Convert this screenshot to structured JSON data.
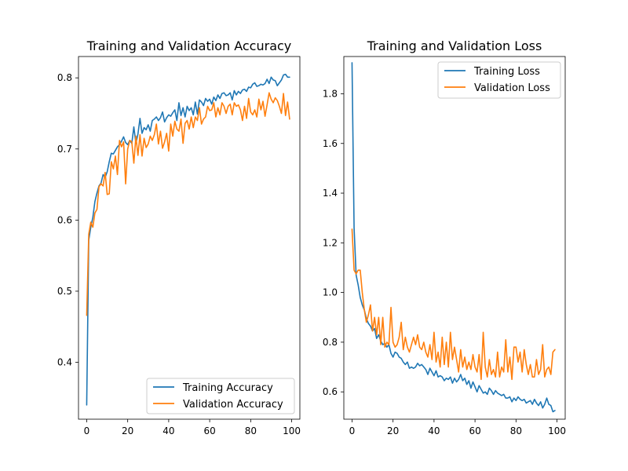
{
  "chart_data": [
    {
      "type": "line",
      "title": "Training and Validation Accuracy",
      "xlabel": "",
      "ylabel": "",
      "xlim": [
        -4,
        104
      ],
      "ylim": [
        0.32,
        0.83
      ],
      "xticks": [
        0,
        20,
        40,
        60,
        80,
        100
      ],
      "yticks": [
        0.4,
        0.5,
        0.6,
        0.7,
        0.8
      ],
      "legend_position": "lower-right",
      "grid": false,
      "series": [
        {
          "name": "Training Accuracy",
          "color": "#1f77b4",
          "x": [
            0,
            1,
            2,
            3,
            4,
            5,
            6,
            7,
            8,
            9,
            10,
            11,
            12,
            13,
            14,
            15,
            16,
            17,
            18,
            19,
            20,
            21,
            22,
            23,
            24,
            25,
            26,
            27,
            28,
            29,
            30,
            31,
            32,
            33,
            34,
            35,
            36,
            37,
            38,
            39,
            40,
            41,
            42,
            43,
            44,
            45,
            46,
            47,
            48,
            49,
            50,
            51,
            52,
            53,
            54,
            55,
            56,
            57,
            58,
            59,
            60,
            61,
            62,
            63,
            64,
            65,
            66,
            67,
            68,
            69,
            70,
            71,
            72,
            73,
            74,
            75,
            76,
            77,
            78,
            79,
            80,
            81,
            82,
            83,
            84,
            85,
            86,
            87,
            88,
            89,
            90,
            91,
            92,
            93,
            94,
            95,
            96,
            97,
            98,
            99
          ],
          "values": [
            0.34,
            0.572,
            0.59,
            0.604,
            0.626,
            0.638,
            0.648,
            0.652,
            0.664,
            0.66,
            0.668,
            0.682,
            0.694,
            0.693,
            0.698,
            0.703,
            0.706,
            0.711,
            0.717,
            0.709,
            0.706,
            0.712,
            0.708,
            0.731,
            0.708,
            0.721,
            0.743,
            0.722,
            0.73,
            0.727,
            0.734,
            0.725,
            0.74,
            0.742,
            0.745,
            0.74,
            0.744,
            0.752,
            0.738,
            0.744,
            0.748,
            0.746,
            0.751,
            0.755,
            0.74,
            0.765,
            0.747,
            0.758,
            0.745,
            0.76,
            0.754,
            0.758,
            0.748,
            0.766,
            0.749,
            0.769,
            0.766,
            0.761,
            0.771,
            0.767,
            0.77,
            0.763,
            0.773,
            0.768,
            0.776,
            0.771,
            0.778,
            0.779,
            0.775,
            0.776,
            0.779,
            0.769,
            0.782,
            0.776,
            0.781,
            0.778,
            0.783,
            0.784,
            0.781,
            0.787,
            0.786,
            0.791,
            0.793,
            0.788,
            0.789,
            0.791,
            0.79,
            0.792,
            0.798,
            0.792,
            0.801,
            0.797,
            0.796,
            0.789,
            0.793,
            0.797,
            0.804,
            0.805,
            0.801,
            0.801
          ]
        },
        {
          "name": "Validation Accuracy",
          "color": "#ff7f0e",
          "x": [
            0,
            1,
            2,
            3,
            4,
            5,
            6,
            7,
            8,
            9,
            10,
            11,
            12,
            13,
            14,
            15,
            16,
            17,
            18,
            19,
            20,
            21,
            22,
            23,
            24,
            25,
            26,
            27,
            28,
            29,
            30,
            31,
            32,
            33,
            34,
            35,
            36,
            37,
            38,
            39,
            40,
            41,
            42,
            43,
            44,
            45,
            46,
            47,
            48,
            49,
            50,
            51,
            52,
            53,
            54,
            55,
            56,
            57,
            58,
            59,
            60,
            61,
            62,
            63,
            64,
            65,
            66,
            67,
            68,
            69,
            70,
            71,
            72,
            73,
            74,
            75,
            76,
            77,
            78,
            79,
            80,
            81,
            82,
            83,
            84,
            85,
            86,
            87,
            88,
            89,
            90,
            91,
            92,
            93,
            94,
            95,
            96,
            97,
            98,
            99
          ],
          "values": [
            0.466,
            0.58,
            0.597,
            0.59,
            0.61,
            0.615,
            0.647,
            0.651,
            0.648,
            0.667,
            0.636,
            0.637,
            0.682,
            0.672,
            0.69,
            0.664,
            0.712,
            0.703,
            0.71,
            0.651,
            0.7,
            0.712,
            0.71,
            0.68,
            0.718,
            0.691,
            0.72,
            0.69,
            0.715,
            0.702,
            0.707,
            0.718,
            0.712,
            0.72,
            0.735,
            0.707,
            0.725,
            0.701,
            0.71,
            0.722,
            0.697,
            0.735,
            0.718,
            0.739,
            0.728,
            0.725,
            0.742,
            0.708,
            0.736,
            0.74,
            0.728,
            0.745,
            0.73,
            0.745,
            0.74,
            0.758,
            0.735,
            0.742,
            0.745,
            0.76,
            0.754,
            0.755,
            0.765,
            0.745,
            0.758,
            0.748,
            0.765,
            0.76,
            0.75,
            0.76,
            0.763,
            0.748,
            0.765,
            0.76,
            0.762,
            0.755,
            0.74,
            0.76,
            0.743,
            0.771,
            0.752,
            0.748,
            0.755,
            0.745,
            0.77,
            0.755,
            0.767,
            0.746,
            0.762,
            0.779,
            0.77,
            0.765,
            0.772,
            0.768,
            0.76,
            0.75,
            0.778,
            0.747,
            0.766,
            0.742
          ]
        }
      ]
    },
    {
      "type": "line",
      "title": "Training and Validation Loss",
      "xlabel": "",
      "ylabel": "",
      "xlim": [
        -4,
        104
      ],
      "ylim": [
        0.49,
        1.95
      ],
      "xticks": [
        0,
        20,
        40,
        60,
        80,
        100
      ],
      "yticks": [
        0.6,
        0.8,
        1.0,
        1.2,
        1.4,
        1.6,
        1.8
      ],
      "legend_position": "upper-right",
      "grid": false,
      "series": [
        {
          "name": "Training Loss",
          "color": "#1f77b4",
          "x": [
            0,
            1,
            2,
            3,
            4,
            5,
            6,
            7,
            8,
            9,
            10,
            11,
            12,
            13,
            14,
            15,
            16,
            17,
            18,
            19,
            20,
            21,
            22,
            23,
            24,
            25,
            26,
            27,
            28,
            29,
            30,
            31,
            32,
            33,
            34,
            35,
            36,
            37,
            38,
            39,
            40,
            41,
            42,
            43,
            44,
            45,
            46,
            47,
            48,
            49,
            50,
            51,
            52,
            53,
            54,
            55,
            56,
            57,
            58,
            59,
            60,
            61,
            62,
            63,
            64,
            65,
            66,
            67,
            68,
            69,
            70,
            71,
            72,
            73,
            74,
            75,
            76,
            77,
            78,
            79,
            80,
            81,
            82,
            83,
            84,
            85,
            86,
            87,
            88,
            89,
            90,
            91,
            92,
            93,
            94,
            95,
            96,
            97,
            98,
            99
          ],
          "values": [
            1.925,
            1.26,
            1.07,
            1.03,
            0.98,
            0.95,
            0.93,
            0.895,
            0.875,
            0.865,
            0.845,
            0.855,
            0.815,
            0.83,
            0.805,
            0.79,
            0.795,
            0.78,
            0.79,
            0.755,
            0.74,
            0.76,
            0.755,
            0.74,
            0.735,
            0.72,
            0.71,
            0.72,
            0.695,
            0.7,
            0.695,
            0.7,
            0.715,
            0.705,
            0.71,
            0.7,
            0.69,
            0.67,
            0.695,
            0.68,
            0.665,
            0.685,
            0.66,
            0.665,
            0.66,
            0.645,
            0.655,
            0.65,
            0.66,
            0.635,
            0.655,
            0.64,
            0.65,
            0.67,
            0.645,
            0.655,
            0.63,
            0.645,
            0.615,
            0.64,
            0.62,
            0.6,
            0.625,
            0.61,
            0.595,
            0.6,
            0.59,
            0.615,
            0.605,
            0.59,
            0.605,
            0.595,
            0.59,
            0.585,
            0.59,
            0.575,
            0.575,
            0.58,
            0.56,
            0.575,
            0.565,
            0.58,
            0.57,
            0.565,
            0.57,
            0.555,
            0.56,
            0.565,
            0.55,
            0.57,
            0.555,
            0.545,
            0.56,
            0.535,
            0.55,
            0.575,
            0.55,
            0.545,
            0.52,
            0.525
          ]
        },
        {
          "name": "Validation Loss",
          "color": "#ff7f0e",
          "x": [
            0,
            1,
            2,
            3,
            4,
            5,
            6,
            7,
            8,
            9,
            10,
            11,
            12,
            13,
            14,
            15,
            16,
            17,
            18,
            19,
            20,
            21,
            22,
            23,
            24,
            25,
            26,
            27,
            28,
            29,
            30,
            31,
            32,
            33,
            34,
            35,
            36,
            37,
            38,
            39,
            40,
            41,
            42,
            43,
            44,
            45,
            46,
            47,
            48,
            49,
            50,
            51,
            52,
            53,
            54,
            55,
            56,
            57,
            58,
            59,
            60,
            61,
            62,
            63,
            64,
            65,
            66,
            67,
            68,
            69,
            70,
            71,
            72,
            73,
            74,
            75,
            76,
            77,
            78,
            79,
            80,
            81,
            82,
            83,
            84,
            85,
            86,
            87,
            88,
            89,
            90,
            91,
            92,
            93,
            94,
            95,
            96,
            97,
            98,
            99
          ],
          "values": [
            1.255,
            1.09,
            1.075,
            1.09,
            1.09,
            1.0,
            0.93,
            0.88,
            0.91,
            0.95,
            0.845,
            0.9,
            0.83,
            0.9,
            0.79,
            0.9,
            0.78,
            0.8,
            0.79,
            0.94,
            0.8,
            0.78,
            0.79,
            0.82,
            0.88,
            0.77,
            0.82,
            0.78,
            0.76,
            0.79,
            0.82,
            0.79,
            0.83,
            0.78,
            0.77,
            0.8,
            0.76,
            0.74,
            0.79,
            0.73,
            0.84,
            0.72,
            0.76,
            0.7,
            0.82,
            0.71,
            0.8,
            0.7,
            0.84,
            0.73,
            0.78,
            0.73,
            0.68,
            0.77,
            0.7,
            0.74,
            0.69,
            0.72,
            0.69,
            0.75,
            0.7,
            0.68,
            0.75,
            0.65,
            0.84,
            0.7,
            0.66,
            0.73,
            0.67,
            0.69,
            0.66,
            0.76,
            0.66,
            0.7,
            0.68,
            0.81,
            0.68,
            0.74,
            0.65,
            0.78,
            0.78,
            0.72,
            0.76,
            0.68,
            0.77,
            0.71,
            0.67,
            0.71,
            0.66,
            0.66,
            0.73,
            0.67,
            0.69,
            0.79,
            0.66,
            0.69,
            0.7,
            0.67,
            0.76,
            0.77
          ]
        }
      ]
    }
  ]
}
